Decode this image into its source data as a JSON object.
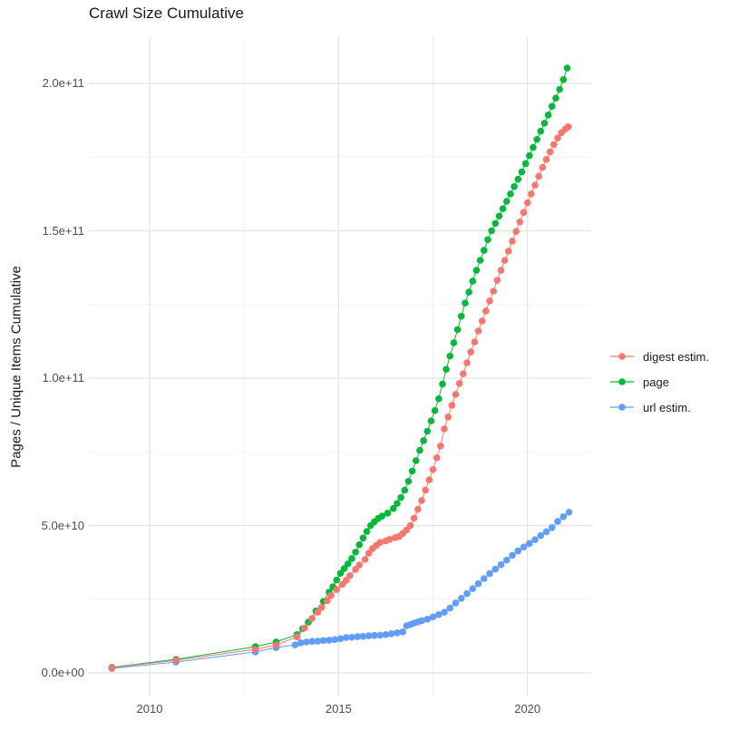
{
  "chart_data": {
    "type": "scatter",
    "title": "Crawl Size Cumulative",
    "xlabel": "",
    "ylabel": "Pages / Unique Items Cumulative",
    "value_unit": "billions (1e9) of pages / unique items",
    "xlim": [
      2008.4,
      2021.7
    ],
    "ylim": [
      "0.0e+00",
      "2.157e+11"
    ],
    "grid": "major and minor, light gray on white",
    "legend_position": "right",
    "x_axis": {
      "major_ticks": [
        2010,
        2015,
        2020
      ],
      "minor_ticks": [
        2012.5,
        2017.5
      ],
      "tick_labels": [
        "2010",
        "2015",
        "2020"
      ]
    },
    "y_axis": {
      "major_ticks_e9": [
        0,
        50,
        100,
        150,
        200
      ],
      "minor_ticks_e9": [
        25,
        75,
        125,
        175
      ],
      "tick_labels": [
        "0.0e+00",
        "5.0e+10",
        "1.0e+11",
        "1.5e+11",
        "2.0e+11"
      ]
    },
    "series": [
      {
        "name": "url estim.",
        "color": "#619CFF",
        "points": [
          [
            2009.0,
            1.5
          ],
          [
            2010.7,
            3.7
          ],
          [
            2012.8,
            7.1
          ],
          [
            2013.35,
            8.6
          ],
          [
            2013.85,
            9.5
          ],
          [
            2014.0,
            10.2
          ],
          [
            2014.15,
            10.5
          ],
          [
            2014.3,
            10.7
          ],
          [
            2014.45,
            10.8
          ],
          [
            2014.6,
            11.0
          ],
          [
            2014.75,
            11.1
          ],
          [
            2014.9,
            11.3
          ],
          [
            2015.05,
            11.6
          ],
          [
            2015.2,
            12.0
          ],
          [
            2015.35,
            12.1
          ],
          [
            2015.5,
            12.3
          ],
          [
            2015.65,
            12.4
          ],
          [
            2015.8,
            12.6
          ],
          [
            2015.95,
            12.7
          ],
          [
            2016.1,
            12.8
          ],
          [
            2016.25,
            13.0
          ],
          [
            2016.4,
            13.3
          ],
          [
            2016.55,
            13.6
          ],
          [
            2016.7,
            13.9
          ],
          [
            2016.8,
            16.0
          ],
          [
            2016.9,
            16.4
          ],
          [
            2017.0,
            16.9
          ],
          [
            2017.1,
            17.3
          ],
          [
            2017.2,
            17.7
          ],
          [
            2017.35,
            18.2
          ],
          [
            2017.5,
            19.0
          ],
          [
            2017.65,
            19.8
          ],
          [
            2017.8,
            20.6
          ],
          [
            2017.95,
            22.0
          ],
          [
            2018.1,
            23.7
          ],
          [
            2018.25,
            25.3
          ],
          [
            2018.4,
            26.9
          ],
          [
            2018.55,
            28.6
          ],
          [
            2018.7,
            30.3
          ],
          [
            2018.85,
            32.0
          ],
          [
            2019.0,
            33.7
          ],
          [
            2019.15,
            35.2
          ],
          [
            2019.3,
            36.7
          ],
          [
            2019.45,
            38.3
          ],
          [
            2019.6,
            39.9
          ],
          [
            2019.75,
            41.4
          ],
          [
            2019.9,
            42.7
          ],
          [
            2020.05,
            43.9
          ],
          [
            2020.2,
            45.2
          ],
          [
            2020.35,
            46.6
          ],
          [
            2020.5,
            47.9
          ],
          [
            2020.65,
            49.3
          ],
          [
            2020.8,
            51.4
          ],
          [
            2020.95,
            53.0
          ],
          [
            2021.1,
            54.5
          ]
        ]
      },
      {
        "name": "page",
        "color": "#00BA38",
        "points": [
          [
            2009.0,
            1.9
          ],
          [
            2010.7,
            4.6
          ],
          [
            2012.8,
            8.9
          ],
          [
            2013.35,
            10.5
          ],
          [
            2013.9,
            13.0
          ],
          [
            2014.05,
            15.0
          ],
          [
            2014.2,
            17.2
          ],
          [
            2014.4,
            21.0
          ],
          [
            2014.6,
            24.3
          ],
          [
            2014.75,
            27.4
          ],
          [
            2014.85,
            29.2
          ],
          [
            2014.95,
            31.5
          ],
          [
            2015.05,
            33.8
          ],
          [
            2015.15,
            35.4
          ],
          [
            2015.25,
            37.0
          ],
          [
            2015.35,
            38.8
          ],
          [
            2015.45,
            41.0
          ],
          [
            2015.55,
            43.5
          ],
          [
            2015.65,
            45.8
          ],
          [
            2015.75,
            48.0
          ],
          [
            2015.85,
            50.0
          ],
          [
            2015.95,
            51.3
          ],
          [
            2016.05,
            52.4
          ],
          [
            2016.15,
            53.2
          ],
          [
            2016.3,
            54.2
          ],
          [
            2016.45,
            55.8
          ],
          [
            2016.55,
            57.5
          ],
          [
            2016.65,
            59.5
          ],
          [
            2016.75,
            62.0
          ],
          [
            2016.85,
            65.0
          ],
          [
            2016.95,
            68.5
          ],
          [
            2017.05,
            72.0
          ],
          [
            2017.15,
            75.5
          ],
          [
            2017.25,
            78.8
          ],
          [
            2017.35,
            82.0
          ],
          [
            2017.45,
            85.5
          ],
          [
            2017.55,
            89.0
          ],
          [
            2017.65,
            93.0
          ],
          [
            2017.75,
            98.0
          ],
          [
            2017.85,
            103.0
          ],
          [
            2017.95,
            107.5
          ],
          [
            2018.05,
            112.0
          ],
          [
            2018.15,
            116.5
          ],
          [
            2018.25,
            121.0
          ],
          [
            2018.35,
            125.5
          ],
          [
            2018.45,
            129.2
          ],
          [
            2018.55,
            132.9
          ],
          [
            2018.65,
            136.6
          ],
          [
            2018.75,
            140.0
          ],
          [
            2018.85,
            143.4
          ],
          [
            2018.95,
            147.0
          ],
          [
            2019.05,
            150.0
          ],
          [
            2019.15,
            152.5
          ],
          [
            2019.25,
            155.0
          ],
          [
            2019.35,
            157.5
          ],
          [
            2019.45,
            160.0
          ],
          [
            2019.55,
            162.5
          ],
          [
            2019.65,
            165.0
          ],
          [
            2019.75,
            167.5
          ],
          [
            2019.85,
            170.0
          ],
          [
            2019.95,
            172.8
          ],
          [
            2020.05,
            175.5
          ],
          [
            2020.15,
            178.3
          ],
          [
            2020.25,
            181.0
          ],
          [
            2020.35,
            183.8
          ],
          [
            2020.45,
            186.5
          ],
          [
            2020.55,
            189.3
          ],
          [
            2020.65,
            192.2
          ],
          [
            2020.75,
            195.0
          ],
          [
            2020.85,
            198.0
          ],
          [
            2020.95,
            201.3
          ],
          [
            2021.05,
            205.2
          ]
        ]
      },
      {
        "name": "digest estim.",
        "color": "#F8766D",
        "points": [
          [
            2009.0,
            1.8
          ],
          [
            2010.7,
            4.3
          ],
          [
            2012.8,
            8.0
          ],
          [
            2013.35,
            9.5
          ],
          [
            2013.9,
            12.2
          ],
          [
            2014.1,
            15.2
          ],
          [
            2014.3,
            18.5
          ],
          [
            2014.45,
            20.6
          ],
          [
            2014.55,
            22.2
          ],
          [
            2014.7,
            24.5
          ],
          [
            2014.8,
            26.3
          ],
          [
            2014.95,
            28.3
          ],
          [
            2015.1,
            30.0
          ],
          [
            2015.2,
            31.4
          ],
          [
            2015.3,
            33.0
          ],
          [
            2015.45,
            35.1
          ],
          [
            2015.55,
            36.6
          ],
          [
            2015.7,
            38.5
          ],
          [
            2015.8,
            40.6
          ],
          [
            2015.9,
            42.2
          ],
          [
            2016.0,
            43.3
          ],
          [
            2016.1,
            44.3
          ],
          [
            2016.25,
            44.8
          ],
          [
            2016.35,
            45.3
          ],
          [
            2016.5,
            45.9
          ],
          [
            2016.6,
            46.3
          ],
          [
            2016.7,
            47.3
          ],
          [
            2016.8,
            48.5
          ],
          [
            2016.9,
            50.0
          ],
          [
            2017.0,
            52.5
          ],
          [
            2017.1,
            55.5
          ],
          [
            2017.2,
            58.5
          ],
          [
            2017.3,
            62.0
          ],
          [
            2017.4,
            65.5
          ],
          [
            2017.5,
            69.0
          ],
          [
            2017.6,
            73.0
          ],
          [
            2017.7,
            77.0
          ],
          [
            2017.8,
            82.8
          ],
          [
            2017.9,
            86.8
          ],
          [
            2018.0,
            90.8
          ],
          [
            2018.1,
            94.5
          ],
          [
            2018.2,
            98.2
          ],
          [
            2018.3,
            101.5
          ],
          [
            2018.4,
            105.2
          ],
          [
            2018.5,
            108.9
          ],
          [
            2018.6,
            112.3
          ],
          [
            2018.7,
            116.0
          ],
          [
            2018.8,
            119.4
          ],
          [
            2018.9,
            122.8
          ],
          [
            2019.0,
            126.2
          ],
          [
            2019.1,
            129.5
          ],
          [
            2019.2,
            133.2
          ],
          [
            2019.3,
            136.6
          ],
          [
            2019.4,
            140.0
          ],
          [
            2019.5,
            143.1
          ],
          [
            2019.6,
            146.5
          ],
          [
            2019.7,
            149.8
          ],
          [
            2019.8,
            153.0
          ],
          [
            2019.9,
            156.2
          ],
          [
            2020.0,
            159.5
          ],
          [
            2020.1,
            162.5
          ],
          [
            2020.2,
            165.5
          ],
          [
            2020.3,
            168.5
          ],
          [
            2020.4,
            171.5
          ],
          [
            2020.5,
            174.2
          ],
          [
            2020.6,
            176.8
          ],
          [
            2020.7,
            179.3
          ],
          [
            2020.8,
            181.5
          ],
          [
            2020.9,
            183.3
          ],
          [
            2021.0,
            184.5
          ],
          [
            2021.08,
            185.3
          ]
        ]
      }
    ],
    "legend_order": [
      "digest estim.",
      "page",
      "url estim."
    ]
  },
  "colors": {
    "grid_major": "#e3e3e3",
    "grid_minor": "#efefef",
    "tick_text": "#4d4d4d",
    "title_text": "#1a1a1a",
    "background": "#ffffff"
  }
}
